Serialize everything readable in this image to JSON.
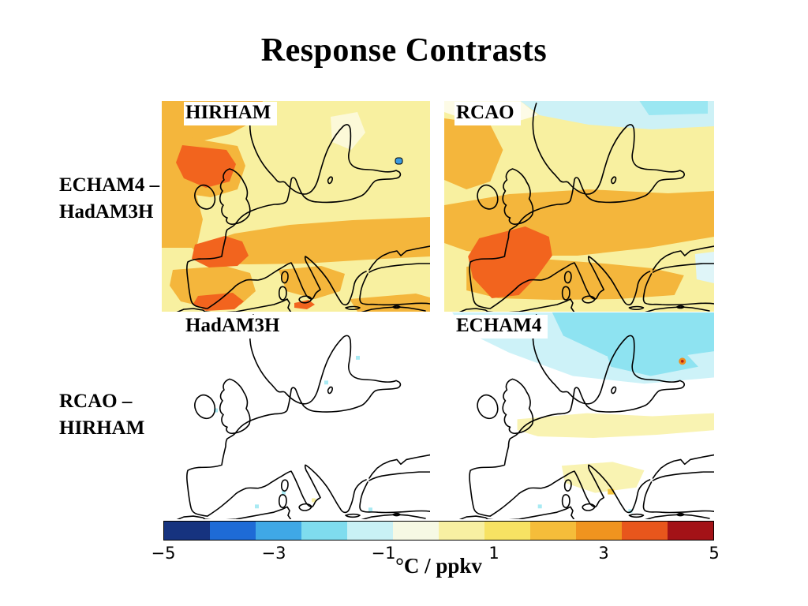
{
  "slide": {
    "title": "Response Contrasts",
    "row_labels": [
      {
        "line1": "ECHAM4 –",
        "line2": "HadAM3H"
      },
      {
        "line1": "RCAO –",
        "line2": "HIRHAM"
      }
    ],
    "panels": [
      {
        "label": "HIRHAM"
      },
      {
        "label": "RCAO"
      },
      {
        "label": "HadAM3H"
      },
      {
        "label": "ECHAM4"
      }
    ],
    "colorbar": {
      "unit": "°C / ppkv",
      "ticks": [
        "−5",
        "−3",
        "−1",
        "1",
        "3",
        "5"
      ],
      "range": [
        -5,
        5
      ],
      "colors": [
        "#16337f",
        "#1e6bd6",
        "#3fa8e6",
        "#7fdcee",
        "#c9f1f5",
        "#f6f9e4",
        "#f8f0a2",
        "#f7e263",
        "#f5bd3a",
        "#f0941f",
        "#e8561c",
        "#a31217"
      ]
    }
  }
}
